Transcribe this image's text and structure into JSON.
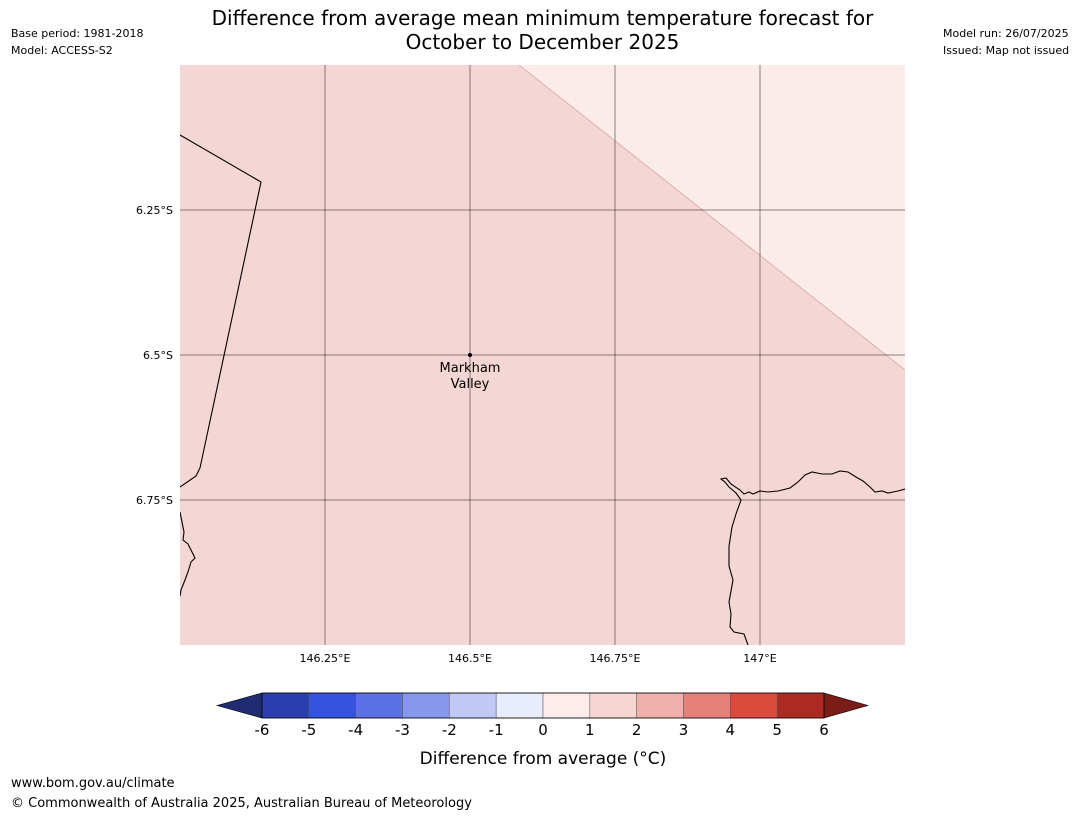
{
  "header": {
    "title_line1": "Difference from average mean minimum temperature forecast for",
    "title_line2": "October to December 2025",
    "base_period": "Base period: 1981-2018",
    "model": "Model: ACCESS-S2",
    "model_run": "Model run: 26/07/2025",
    "issued": "Issued: Map not issued"
  },
  "map": {
    "region_extent": {
      "lon": [
        146.0,
        147.25
      ],
      "lat": [
        -6.0,
        -7.0
      ]
    },
    "lat_ticks": [
      {
        "value": -6.25,
        "label": "6.25°S"
      },
      {
        "value": -6.5,
        "label": "6.5°S"
      },
      {
        "value": -6.75,
        "label": "6.75°S"
      }
    ],
    "lon_ticks": [
      {
        "value": 146.25,
        "label": "146.25°E"
      },
      {
        "value": 146.5,
        "label": "146.5°E"
      },
      {
        "value": 146.75,
        "label": "146.75°E"
      },
      {
        "value": 147.0,
        "label": "147°E"
      }
    ],
    "grid": true,
    "place": {
      "name_line1": "Markham",
      "name_line2": "Valley",
      "lon": 146.5,
      "lat": -6.5
    },
    "fill_zones": [
      {
        "range": "1 to 2",
        "color": "#f4d6d4"
      },
      {
        "range": "0 to 1",
        "color": "#fbebe9"
      }
    ]
  },
  "colorbar": {
    "label": "Difference from average (°C)",
    "ticks": [
      "-6",
      "-5",
      "-4",
      "-3",
      "-2",
      "-1",
      "0",
      "1",
      "2",
      "3",
      "4",
      "5",
      "6"
    ],
    "below_color": "#1f2c72",
    "above_color": "#7a1c18",
    "colors": [
      "#2a3eaf",
      "#3452dd",
      "#5c71e3",
      "#8797ec",
      "#c1c8f5",
      "#e9ecfd",
      "#fdecea",
      "#f7d5d2",
      "#efb0ab",
      "#e5817b",
      "#dc4a3e",
      "#ad2a22"
    ]
  },
  "footer": {
    "url": "www.bom.gov.au/climate",
    "copyright": "© Commonwealth of Australia 2025, Australian Bureau of Meteorology"
  }
}
